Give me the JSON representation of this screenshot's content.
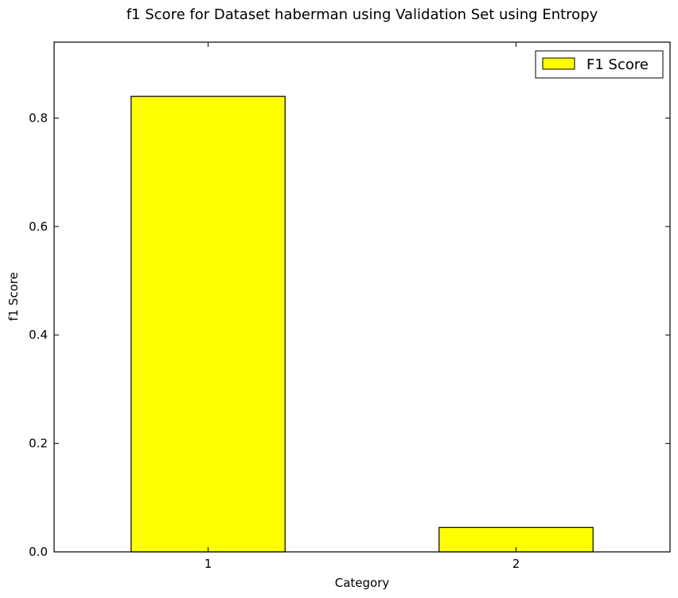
{
  "chart_data": {
    "type": "bar",
    "title": "f1 Score for Dataset haberman using Validation Set using Entropy",
    "xlabel": "Category",
    "ylabel": "f1 Score",
    "categories": [
      "1",
      "2"
    ],
    "series": [
      {
        "name": "F1 Score",
        "values": [
          0.84,
          0.045
        ],
        "color": "#ffff00"
      }
    ],
    "ylim": [
      0.0,
      0.94
    ],
    "xlim": [
      0.5,
      2.5
    ],
    "yticks": [
      0.0,
      0.2,
      0.4,
      0.6,
      0.8
    ],
    "ytick_labels": [
      "0.0",
      "0.2",
      "0.4",
      "0.6",
      "0.8"
    ],
    "grid": false,
    "legend_position": "top-right"
  }
}
